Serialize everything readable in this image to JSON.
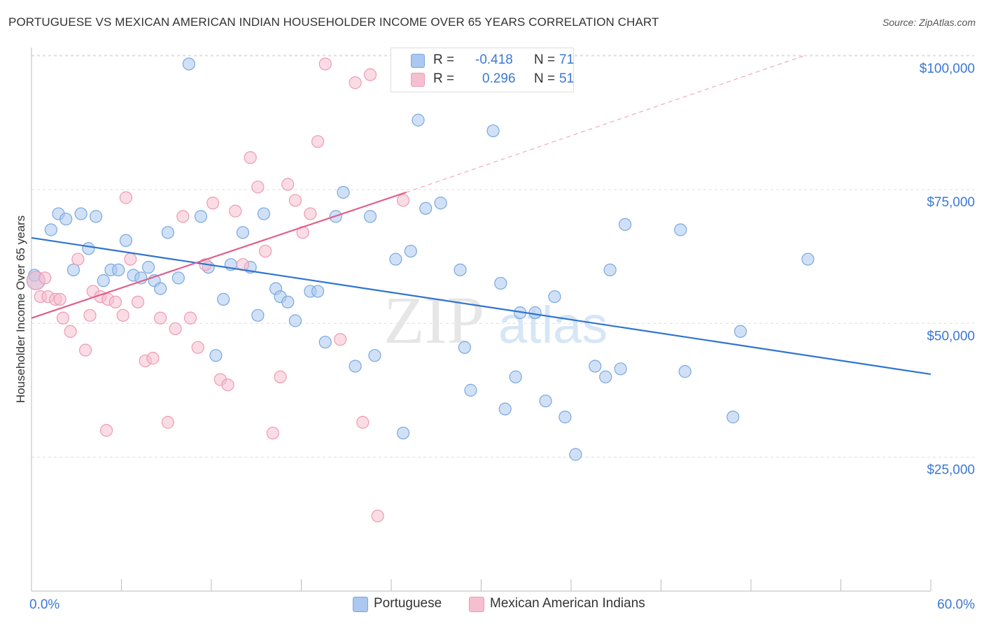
{
  "header": {
    "title": "PORTUGUESE VS MEXICAN AMERICAN INDIAN HOUSEHOLDER INCOME OVER 65 YEARS CORRELATION CHART",
    "source": "Source: ZipAtlas.com"
  },
  "watermark": {
    "zip": "ZIP",
    "atlas": "atlas"
  },
  "legend": {
    "rows": [
      {
        "r_label": "R =",
        "r_value": "-0.418",
        "n_label": "N =",
        "n_value": "71"
      },
      {
        "r_label": "R =",
        "r_value": "0.296",
        "n_label": "N =",
        "n_value": "51"
      }
    ]
  },
  "bottom_legend": {
    "series1": "Portuguese",
    "series2": "Mexican American Indians"
  },
  "colors": {
    "portuguese_fill": "#aac8f0",
    "portuguese_stroke": "#7aa7e0",
    "portuguese_line": "#2f74d0",
    "mexican_fill": "#f6bfd0",
    "mexican_stroke": "#ee9ab4",
    "mexican_line": "#e0608a",
    "axis_text": "#3a78d4",
    "grid": "#dddddd"
  },
  "chart_data": {
    "type": "scatter",
    "title": "PORTUGUESE VS MEXICAN AMERICAN INDIAN HOUSEHOLDER INCOME OVER 65 YEARS CORRELATION CHART",
    "xlabel": "",
    "ylabel": "Householder Income Over 65 years",
    "xlim": [
      0,
      60
    ],
    "ylim": [
      0,
      105000
    ],
    "x_tick_labels": [
      "0.0%",
      "60.0%"
    ],
    "y_ticks": [
      25000,
      50000,
      75000,
      100000
    ],
    "y_tick_labels": [
      "$25,000",
      "$50,000",
      "$75,000",
      "$100,000"
    ],
    "grid": true,
    "legend_position": "top-center",
    "series": [
      {
        "name": "Portuguese",
        "R": -0.418,
        "N": 71,
        "trend": {
          "x": [
            0,
            60
          ],
          "y": [
            66000,
            40500
          ]
        },
        "points": [
          [
            0.3,
            58000
          ],
          [
            1.3,
            67500
          ],
          [
            1.8,
            70500
          ],
          [
            2.3,
            69500
          ],
          [
            2.8,
            60000
          ],
          [
            3.3,
            70500
          ],
          [
            3.8,
            64000
          ],
          [
            4.3,
            70000
          ],
          [
            4.8,
            58000
          ],
          [
            5.3,
            60000
          ],
          [
            5.8,
            60000
          ],
          [
            6.3,
            65500
          ],
          [
            6.8,
            59000
          ],
          [
            7.3,
            58500
          ],
          [
            7.8,
            60500
          ],
          [
            8.2,
            58000
          ],
          [
            8.6,
            56500
          ],
          [
            9.1,
            67000
          ],
          [
            9.8,
            58500
          ],
          [
            10.5,
            98500
          ],
          [
            11.3,
            70000
          ],
          [
            11.8,
            60500
          ],
          [
            12.3,
            44000
          ],
          [
            12.8,
            54500
          ],
          [
            13.3,
            61000
          ],
          [
            14.1,
            67000
          ],
          [
            14.6,
            60500
          ],
          [
            15.1,
            51500
          ],
          [
            15.5,
            70500
          ],
          [
            16.3,
            56500
          ],
          [
            16.6,
            55000
          ],
          [
            17.1,
            54000
          ],
          [
            17.6,
            50500
          ],
          [
            18.6,
            56000
          ],
          [
            19.1,
            56000
          ],
          [
            19.6,
            46500
          ],
          [
            20.3,
            70000
          ],
          [
            20.8,
            74500
          ],
          [
            21.6,
            42000
          ],
          [
            22.6,
            70000
          ],
          [
            22.9,
            44000
          ],
          [
            24.3,
            62000
          ],
          [
            24.8,
            29500
          ],
          [
            25.3,
            63500
          ],
          [
            25.8,
            88000
          ],
          [
            26.3,
            71500
          ],
          [
            27.3,
            72500
          ],
          [
            28.6,
            60000
          ],
          [
            28.9,
            45500
          ],
          [
            29.3,
            37500
          ],
          [
            30.8,
            86000
          ],
          [
            31.3,
            57500
          ],
          [
            31.6,
            34000
          ],
          [
            32.3,
            40000
          ],
          [
            32.6,
            52000
          ],
          [
            33.6,
            52000
          ],
          [
            34.3,
            35500
          ],
          [
            34.9,
            55000
          ],
          [
            35.6,
            32500
          ],
          [
            36.3,
            25500
          ],
          [
            37.6,
            42000
          ],
          [
            38.3,
            40000
          ],
          [
            38.6,
            60000
          ],
          [
            39.3,
            41500
          ],
          [
            39.6,
            68500
          ],
          [
            43.3,
            67500
          ],
          [
            43.6,
            41000
          ],
          [
            46.8,
            32500
          ],
          [
            47.3,
            48500
          ],
          [
            51.8,
            62000
          ],
          [
            0.2,
            59000
          ]
        ]
      },
      {
        "name": "Mexican American Indians",
        "R": 0.296,
        "N": 51,
        "trend": {
          "x": [
            0,
            25
          ],
          "y": [
            51000,
            74500
          ]
        },
        "dashed_extension": {
          "x": [
            25,
            51.5
          ],
          "y": [
            74500,
            100000
          ]
        },
        "points": [
          [
            0.3,
            58000
          ],
          [
            0.6,
            55000
          ],
          [
            1.1,
            55000
          ],
          [
            1.6,
            54500
          ],
          [
            2.1,
            51000
          ],
          [
            2.6,
            48500
          ],
          [
            3.1,
            62000
          ],
          [
            3.6,
            45000
          ],
          [
            4.1,
            56000
          ],
          [
            4.6,
            55000
          ],
          [
            5.1,
            54500
          ],
          [
            5.6,
            54000
          ],
          [
            6.1,
            51500
          ],
          [
            6.3,
            73500
          ],
          [
            6.6,
            62000
          ],
          [
            7.1,
            54000
          ],
          [
            7.6,
            43000
          ],
          [
            8.1,
            43500
          ],
          [
            8.6,
            51000
          ],
          [
            9.1,
            31500
          ],
          [
            9.6,
            49000
          ],
          [
            10.1,
            70000
          ],
          [
            10.6,
            51000
          ],
          [
            11.1,
            45500
          ],
          [
            11.6,
            61000
          ],
          [
            12.1,
            72500
          ],
          [
            12.6,
            39500
          ],
          [
            13.1,
            38500
          ],
          [
            13.6,
            71000
          ],
          [
            14.1,
            61000
          ],
          [
            14.6,
            81000
          ],
          [
            15.1,
            75500
          ],
          [
            15.6,
            63500
          ],
          [
            16.1,
            29500
          ],
          [
            16.6,
            40000
          ],
          [
            17.1,
            76000
          ],
          [
            17.6,
            73000
          ],
          [
            18.1,
            67000
          ],
          [
            18.6,
            70500
          ],
          [
            19.1,
            84000
          ],
          [
            19.6,
            98500
          ],
          [
            20.6,
            47000
          ],
          [
            21.6,
            95000
          ],
          [
            22.1,
            31500
          ],
          [
            22.6,
            96500
          ],
          [
            23.1,
            14000
          ],
          [
            24.8,
            73000
          ],
          [
            0.9,
            58500
          ],
          [
            1.9,
            54500
          ],
          [
            3.9,
            51500
          ],
          [
            5.0,
            30000
          ]
        ]
      }
    ]
  }
}
